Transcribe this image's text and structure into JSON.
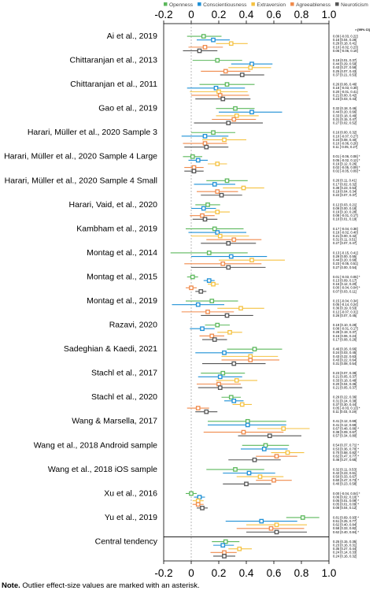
{
  "chart_data": {
    "type": "forest",
    "xlim": [
      -0.2,
      1.0
    ],
    "ticks": [
      -0.2,
      0.0,
      0.2,
      0.4,
      0.6,
      0.8,
      1.0
    ],
    "tick_labels": [
      "-0.2",
      "0",
      "0.2",
      "0.4",
      "0.6",
      "0.8",
      "1.0"
    ],
    "ci_header": "r [95% CI]",
    "legend": [
      {
        "name": "Openness",
        "color": "#5cb85c"
      },
      {
        "name": "Conscientiousness",
        "color": "#1e90d6"
      },
      {
        "name": "Extraversion",
        "color": "#f5c242"
      },
      {
        "name": "Agreeableness",
        "color": "#f08a4b"
      },
      {
        "name": "Neuroticism",
        "color": "#555555"
      }
    ],
    "studies": [
      {
        "label": "Ai et al., 2019",
        "rows": [
          {
            "r": 0.09,
            "lo": -0.03,
            "hi": 0.22,
            "text": "0.09 [-0.03, 0.22]"
          },
          {
            "r": 0.16,
            "lo": 0.04,
            "hi": 0.28,
            "text": "0.16 [0.04, 0.28]"
          },
          {
            "r": 0.29,
            "lo": 0.18,
            "hi": 0.41,
            "text": "0.29 [0.18, 0.41]"
          },
          {
            "r": 0.1,
            "lo": -0.02,
            "hi": 0.23,
            "text": "0.10 [-0.02, 0.23]"
          },
          {
            "r": 0.06,
            "lo": -0.06,
            "hi": 0.19,
            "text": "0.06 [-0.06, 0.19]"
          }
        ]
      },
      {
        "label": "Chittaranjan et al., 2013",
        "rows": [
          {
            "r": 0.19,
            "lo": 0.01,
            "hi": 0.37,
            "text": "0.19 [0.01, 0.37]"
          },
          {
            "r": 0.44,
            "lo": 0.29,
            "hi": 0.59,
            "text": "0.44 [0.29, 0.59]"
          },
          {
            "r": 0.43,
            "lo": 0.27,
            "hi": 0.58,
            "text": "0.43 [0.27, 0.58]"
          },
          {
            "r": 0.25,
            "lo": 0.07,
            "hi": 0.43,
            "text": "0.25 [0.07, 0.43]"
          },
          {
            "r": 0.37,
            "lo": 0.21,
            "hi": 0.53,
            "text": "0.37 [0.21, 0.53]"
          }
        ]
      },
      {
        "label": "Chittaranjan et al., 2011",
        "rows": [
          {
            "r": 0.26,
            "lo": 0.06,
            "hi": 0.46,
            "text": "0.26 [0.06, 0.46]"
          },
          {
            "r": 0.18,
            "lo": -0.03,
            "hi": 0.39,
            "text": "0.18 [-0.03, 0.39]"
          },
          {
            "r": 0.2,
            "lo": -0.01,
            "hi": 0.41,
            "text": "0.20 [-0.01, 0.41]"
          },
          {
            "r": 0.21,
            "lo": 0.0,
            "hi": 0.42,
            "text": "0.21 [0.00, 0.42]"
          },
          {
            "r": 0.23,
            "lo": 0.03,
            "hi": 0.43,
            "text": "0.23 [0.03, 0.43]"
          }
        ]
      },
      {
        "label": "Gao et al., 2019",
        "rows": [
          {
            "r": 0.32,
            "lo": 0.18,
            "hi": 0.46,
            "text": "0.32 [0.18, 0.46]"
          },
          {
            "r": 0.44,
            "lo": 0.2,
            "hi": 0.66,
            "text": "0.44 [0.20, 0.66]"
          },
          {
            "r": 0.33,
            "lo": 0.18,
            "hi": 0.49,
            "text": "0.33 [0.18, 0.49]"
          },
          {
            "r": 0.31,
            "lo": 0.15,
            "hi": 0.47,
            "text": "0.31 [0.15, 0.47]"
          },
          {
            "r": 0.27,
            "lo": 0.02,
            "hi": 0.52,
            "text": "0.27 [0.02, 0.52]"
          }
        ]
      },
      {
        "label": "Harari, Müller et al., 2020 Sample 3",
        "rows": [
          {
            "r": 0.16,
            "lo": 0.0,
            "hi": 0.32,
            "text": "0.16 [0.00, 0.32]"
          },
          {
            "r": 0.1,
            "lo": -0.07,
            "hi": 0.27,
            "text": "0.10 [-0.07, 0.27]"
          },
          {
            "r": 0.24,
            "lo": 0.08,
            "hi": 0.4,
            "text": "0.24 [0.08, 0.40]"
          },
          {
            "r": 0.1,
            "lo": -0.06,
            "hi": 0.26,
            "text": "0.10 [-0.06, 0.26]"
          },
          {
            "r": 0.11,
            "lo": -0.05,
            "hi": 0.27,
            "text": "0.11 [-0.05, 0.27]"
          }
        ]
      },
      {
        "label": "Harari, Müller et al., 2020 Sample 4 Large",
        "rows": [
          {
            "r": 0.01,
            "lo": -0.06,
            "hi": 0.08,
            "text": "0.01 [-0.06, 0.08] *"
          },
          {
            "r": 0.05,
            "lo": -0.02,
            "hi": 0.12,
            "text": "0.05 [-0.02, 0.12] *"
          },
          {
            "r": 0.19,
            "lo": 0.12,
            "hi": 0.26,
            "text": "0.19 [0.12, 0.26]"
          },
          {
            "r": 0.02,
            "lo": -0.05,
            "hi": 0.09,
            "text": "0.02 [-0.05, 0.09] *"
          },
          {
            "r": 0.02,
            "lo": -0.05,
            "hi": 0.09,
            "text": "0.02 [-0.05, 0.09] *"
          }
        ]
      },
      {
        "label": "Harari, Müller et al., 2020 Sample 4 Small",
        "rows": [
          {
            "r": 0.26,
            "lo": 0.11,
            "hi": 0.41,
            "text": "0.26 [0.11, 0.41]"
          },
          {
            "r": 0.17,
            "lo": 0.02,
            "hi": 0.32,
            "text": "0.17 [0.02, 0.32]"
          },
          {
            "r": 0.38,
            "lo": 0.23,
            "hi": 0.53,
            "text": "0.38 [0.23, 0.53]"
          },
          {
            "r": 0.19,
            "lo": 0.04,
            "hi": 0.34,
            "text": "0.19 [0.04, 0.34]"
          },
          {
            "r": 0.22,
            "lo": 0.07,
            "hi": 0.37,
            "text": "0.22 [0.07, 0.37]"
          }
        ]
      },
      {
        "label": "Harari, Vaid, et al., 2020",
        "rows": [
          {
            "r": 0.12,
            "lo": 0.03,
            "hi": 0.21,
            "text": "0.12 [0.03, 0.21]"
          },
          {
            "r": 0.09,
            "lo": 0.0,
            "hi": 0.18,
            "text": "0.09 [0.00, 0.18]"
          },
          {
            "r": 0.19,
            "lo": 0.1,
            "hi": 0.28,
            "text": "0.19 [0.10, 0.28]"
          },
          {
            "r": 0.08,
            "lo": -0.01,
            "hi": 0.17,
            "text": "0.08 [-0.01, 0.17]"
          },
          {
            "r": 0.1,
            "lo": 0.01,
            "hi": 0.19,
            "text": "0.10 [0.01, 0.19]"
          }
        ]
      },
      {
        "label": "Kambham et al., 2019",
        "rows": [
          {
            "r": 0.17,
            "lo": -0.04,
            "hi": 0.38,
            "text": "0.17 [-0.04, 0.38]"
          },
          {
            "r": 0.19,
            "lo": -0.02,
            "hi": 0.4,
            "text": "0.19 [-0.02, 0.40]"
          },
          {
            "r": 0.21,
            "lo": 0.0,
            "hi": 0.42,
            "text": "0.21 [0.00, 0.42]"
          },
          {
            "r": 0.31,
            "lo": 0.11,
            "hi": 0.51,
            "text": "0.31 [0.11, 0.51]"
          },
          {
            "r": 0.27,
            "lo": 0.07,
            "hi": 0.47,
            "text": "0.27 [0.07, 0.47]"
          }
        ]
      },
      {
        "label": "Montag et al., 2014",
        "rows": [
          {
            "r": 0.13,
            "lo": -0.15,
            "hi": 0.41,
            "text": "0.13 [-0.15, 0.41]"
          },
          {
            "r": 0.29,
            "lo": 0.0,
            "hi": 0.55,
            "text": "0.29 [0.00, 0.55]"
          },
          {
            "r": 0.44,
            "lo": 0.2,
            "hi": 0.68,
            "text": "0.44 [0.20, 0.68]"
          },
          {
            "r": 0.23,
            "lo": -0.05,
            "hi": 0.51,
            "text": "0.23 [-0.05, 0.51]"
          },
          {
            "r": 0.27,
            "lo": 0.0,
            "hi": 0.54,
            "text": "0.27 [0.00, 0.54]"
          }
        ]
      },
      {
        "label": "Montag et al., 2015",
        "rows": [
          {
            "r": 0.01,
            "lo": -0.03,
            "hi": 0.05,
            "text": "0.01 [-0.03, 0.05] *"
          },
          {
            "r": 0.13,
            "lo": 0.09,
            "hi": 0.17,
            "text": "0.13 [0.09, 0.17]"
          },
          {
            "r": 0.16,
            "lo": 0.12,
            "hi": 0.2,
            "text": "0.16 [0.12, 0.20]"
          },
          {
            "r": 0.0,
            "lo": -0.04,
            "hi": 0.04,
            "text": "0.00 [-0.04, 0.04] *"
          },
          {
            "r": 0.07,
            "lo": 0.03,
            "hi": 0.11,
            "text": "0.07 [0.03, 0.11]"
          }
        ]
      },
      {
        "label": "Montag et al., 2019",
        "rows": [
          {
            "r": 0.15,
            "lo": -0.04,
            "hi": 0.34,
            "text": "0.15 [-0.04, 0.34]"
          },
          {
            "r": 0.05,
            "lo": -0.14,
            "hi": 0.24,
            "text": "0.05 [-0.14, 0.24]"
          },
          {
            "r": 0.36,
            "lo": 0.19,
            "hi": 0.53,
            "text": "0.36 [0.19, 0.53]"
          },
          {
            "r": 0.12,
            "lo": -0.07,
            "hi": 0.31,
            "text": "0.12 [-0.07, 0.31]"
          },
          {
            "r": 0.26,
            "lo": 0.07,
            "hi": 0.45,
            "text": "0.26 [0.07, 0.45]"
          }
        ]
      },
      {
        "label": "Razavi, 2020",
        "rows": [
          {
            "r": 0.19,
            "lo": 0.1,
            "hi": 0.28,
            "text": "0.19 [0.10, 0.28]"
          },
          {
            "r": 0.08,
            "lo": -0.01,
            "hi": 0.17,
            "text": "0.08 [-0.01, 0.17]"
          },
          {
            "r": 0.28,
            "lo": 0.19,
            "hi": 0.37,
            "text": "0.28 [0.19, 0.37]"
          },
          {
            "r": 0.15,
            "lo": 0.06,
            "hi": 0.24,
            "text": "0.15 [0.06, 0.24]"
          },
          {
            "r": 0.17,
            "lo": 0.08,
            "hi": 0.26,
            "text": "0.17 [0.08, 0.26]"
          }
        ]
      },
      {
        "label": "Sadeghian & Kaedi, 2021",
        "rows": [
          {
            "r": 0.46,
            "lo": 0.26,
            "hi": 0.66,
            "text": "0.46 [0.26, 0.66]"
          },
          {
            "r": 0.24,
            "lo": 0.03,
            "hi": 0.45,
            "text": "0.24 [0.03, 0.45]"
          },
          {
            "r": 0.43,
            "lo": 0.22,
            "hi": 0.63,
            "text": "0.43 [0.22, 0.63]"
          },
          {
            "r": 0.43,
            "lo": 0.22,
            "hi": 0.64,
            "text": "0.43 [0.22, 0.64]"
          },
          {
            "r": 0.31,
            "lo": 0.08,
            "hi": 0.54,
            "text": "0.31 [0.08, 0.54]"
          }
        ]
      },
      {
        "label": "Stachl et al., 2017",
        "rows": [
          {
            "r": 0.23,
            "lo": 0.07,
            "hi": 0.39,
            "text": "0.23 [0.07, 0.39]"
          },
          {
            "r": 0.21,
            "lo": 0.05,
            "hi": 0.37,
            "text": "0.21 [0.05, 0.37]"
          },
          {
            "r": 0.33,
            "lo": 0.18,
            "hi": 0.48,
            "text": "0.33 [0.18, 0.48]"
          },
          {
            "r": 0.2,
            "lo": 0.04,
            "hi": 0.36,
            "text": "0.20 [0.04, 0.36]"
          },
          {
            "r": 0.21,
            "lo": 0.05,
            "hi": 0.37,
            "text": "0.21 [0.05, 0.37]"
          }
        ]
      },
      {
        "label": "Stachl et al., 2020",
        "rows": [
          {
            "r": 0.29,
            "lo": 0.22,
            "hi": 0.36,
            "text": "0.29 [0.22, 0.36]"
          },
          {
            "r": 0.31,
            "lo": 0.24,
            "hi": 0.38,
            "text": "0.31 [0.24, 0.38]"
          },
          {
            "r": 0.37,
            "lo": 0.3,
            "hi": 0.44,
            "text": "0.37 [0.30, 0.44]"
          },
          {
            "r": 0.05,
            "lo": -0.03,
            "hi": 0.13,
            "text": "0.05 [-0.03, 0.13] *"
          },
          {
            "r": 0.11,
            "lo": 0.03,
            "hi": 0.19,
            "text": "0.11 [0.03, 0.19]"
          }
        ]
      },
      {
        "label": "Wang & Marsella, 2017",
        "rows": [
          {
            "r": 0.41,
            "lo": 0.12,
            "hi": 0.69,
            "text": "0.41 [0.12, 0.69]"
          },
          {
            "r": 0.41,
            "lo": 0.12,
            "hi": 0.69,
            "text": "0.41 [0.12, 0.69]"
          },
          {
            "r": 0.67,
            "lo": 0.48,
            "hi": 0.86,
            "text": "0.67 [0.48, 0.86] *"
          },
          {
            "r": 0.38,
            "lo": 0.09,
            "hi": 0.67,
            "text": "0.38 [0.09, 0.67]"
          },
          {
            "r": 0.57,
            "lo": 0.34,
            "hi": 0.8,
            "text": "0.57 [0.34, 0.80]"
          }
        ]
      },
      {
        "label": "Wang et al., 2018 Android sample",
        "rows": [
          {
            "r": 0.54,
            "lo": 0.37,
            "hi": 0.71,
            "text": "0.54 [0.37, 0.71] *"
          },
          {
            "r": 0.53,
            "lo": 0.36,
            "hi": 0.7,
            "text": "0.53 [0.36, 0.70] *"
          },
          {
            "r": 0.7,
            "lo": 0.58,
            "hi": 0.82,
            "text": "0.70 [0.58, 0.82] *"
          },
          {
            "r": 0.62,
            "lo": 0.47,
            "hi": 0.77,
            "text": "0.62 [0.47, 0.77] *"
          },
          {
            "r": 0.46,
            "lo": 0.27,
            "hi": 0.65,
            "text": "0.46 [0.27, 0.65]"
          }
        ]
      },
      {
        "label": "Wang et al., 2018 iOS sample",
        "rows": [
          {
            "r": 0.32,
            "lo": 0.11,
            "hi": 0.53,
            "text": "0.32 [0.11, 0.53]"
          },
          {
            "r": 0.42,
            "lo": 0.23,
            "hi": 0.61,
            "text": "0.42 [0.23, 0.61]"
          },
          {
            "r": 0.5,
            "lo": 0.33,
            "hi": 0.67,
            "text": "0.50 [0.33, 0.67]"
          },
          {
            "r": 0.6,
            "lo": 0.47,
            "hi": 0.73,
            "text": "0.60 [0.47, 0.73] *"
          },
          {
            "r": 0.4,
            "lo": 0.23,
            "hi": 0.58,
            "text": "0.40 [0.23, 0.58]"
          }
        ]
      },
      {
        "label": "Xu et al., 2016",
        "rows": [
          {
            "r": 0.0,
            "lo": -0.04,
            "hi": 0.04,
            "text": "0.00 [-0.04, 0.04] *"
          },
          {
            "r": 0.06,
            "lo": 0.02,
            "hi": 0.1,
            "text": "0.06 [0.02, 0.10] *"
          },
          {
            "r": 0.05,
            "lo": 0.01,
            "hi": 0.09,
            "text": "0.05 [0.01, 0.09] *"
          },
          {
            "r": 0.05,
            "lo": 0.01,
            "hi": 0.09,
            "text": "0.05 [0.01, 0.09] *"
          },
          {
            "r": 0.08,
            "lo": 0.04,
            "hi": 0.12,
            "text": "0.08 [0.04, 0.12]"
          }
        ]
      },
      {
        "label": "Yu et al., 2019",
        "rows": [
          {
            "r": 0.81,
            "lo": 0.69,
            "hi": 0.93,
            "text": "0.81 [0.69, 0.93] *"
          },
          {
            "r": 0.51,
            "lo": 0.25,
            "hi": 0.77,
            "text": "0.51 [0.25, 0.77]"
          },
          {
            "r": 0.62,
            "lo": 0.4,
            "hi": 0.84,
            "text": "0.62 [0.40, 0.84]"
          },
          {
            "r": 0.58,
            "lo": 0.33,
            "hi": 0.82,
            "text": "0.58 [0.33, 0.82]"
          },
          {
            "r": 0.62,
            "lo": 0.4,
            "hi": 0.84,
            "text": "0.62 [0.40, 0.84] *"
          }
        ]
      },
      {
        "label": "Central tendency",
        "rows": [
          {
            "r": 0.25,
            "lo": 0.15,
            "hi": 0.35,
            "text": "0.25 [0.15, 0.35]"
          },
          {
            "r": 0.23,
            "lo": 0.16,
            "hi": 0.31,
            "text": "0.23 [0.16, 0.31]"
          },
          {
            "r": 0.35,
            "lo": 0.27,
            "hi": 0.44,
            "text": "0.35 [0.27, 0.44]"
          },
          {
            "r": 0.24,
            "lo": 0.14,
            "hi": 0.33,
            "text": "0.24 [0.14, 0.33]"
          },
          {
            "r": 0.24,
            "lo": 0.16,
            "hi": 0.32,
            "text": "0.24 [0.16, 0.32]"
          }
        ]
      }
    ]
  },
  "note": {
    "label": "Note.",
    "text": " Outlier effect-size values are marked with an asterisk."
  }
}
